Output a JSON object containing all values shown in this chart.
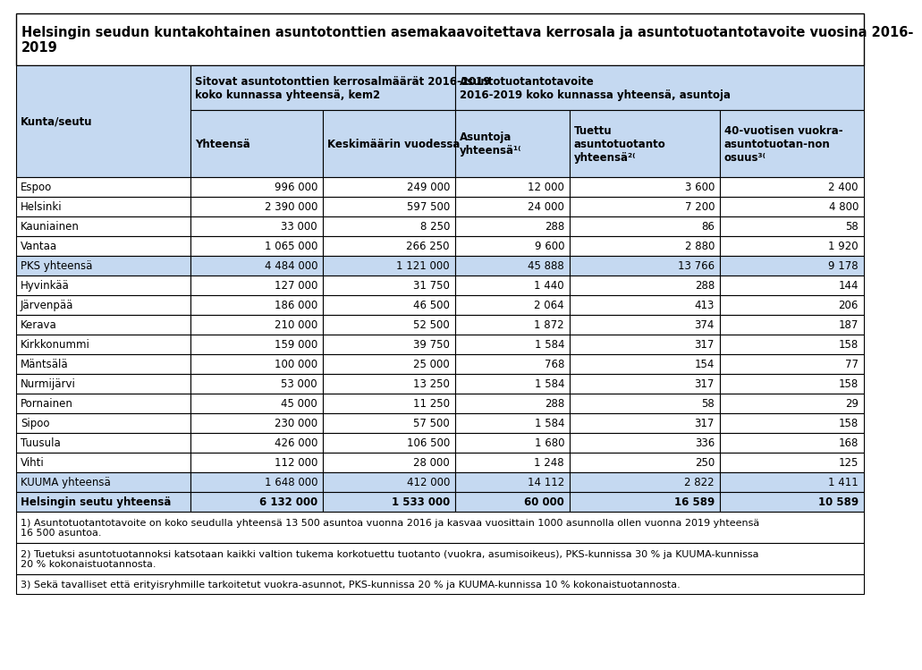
{
  "title": "Helsingin seudun kuntakohtainen asuntotonttien asemakaavoitettava kerrosala ja asuntotuotantotavoite vuosina 2016-\n2019",
  "col_headers_r1_c0": "Kunta/seutu",
  "col_headers_r1_c12": "Sitovat asuntotonttien kerrosalmäärät 2016-2019\nkoko kunnassa yhteensä, kem2",
  "col_headers_r1_c345": "Asuntotuotantotavoite\n2016-2019 koko kunnassa yhteensä, asuntoja",
  "col_headers_r2": [
    "",
    "Yhteensä",
    "Keskimäärin vuodessa",
    "Asuntoja\nyhteensä¹⁽",
    "Tuettu\nasuntotuotanto\nyhteensä²⁽",
    "40-vuotisen vuokra-\nasuntotuotan-non\nosuus³⁽"
  ],
  "rows": [
    [
      "Espoo",
      "996 000",
      "249 000",
      "12 000",
      "3 600",
      "2 400"
    ],
    [
      "Helsinki",
      "2 390 000",
      "597 500",
      "24 000",
      "7 200",
      "4 800"
    ],
    [
      "Kauniainen",
      "33 000",
      "8 250",
      "288",
      "86",
      "58"
    ],
    [
      "Vantaa",
      "1 065 000",
      "266 250",
      "9 600",
      "2 880",
      "1 920"
    ],
    [
      "PKS yhteensä",
      "4 484 000",
      "1 121 000",
      "45 888",
      "13 766",
      "9 178"
    ],
    [
      "Hyvinkää",
      "127 000",
      "31 750",
      "1 440",
      "288",
      "144"
    ],
    [
      "Järvenpää",
      "186 000",
      "46 500",
      "2 064",
      "413",
      "206"
    ],
    [
      "Kerava",
      "210 000",
      "52 500",
      "1 872",
      "374",
      "187"
    ],
    [
      "Kirkkonummi",
      "159 000",
      "39 750",
      "1 584",
      "317",
      "158"
    ],
    [
      "Mäntsälä",
      "100 000",
      "25 000",
      "768",
      "154",
      "77"
    ],
    [
      "Nurmijärvi",
      "53 000",
      "13 250",
      "1 584",
      "317",
      "158"
    ],
    [
      "Pornainen",
      "45 000",
      "11 250",
      "288",
      "58",
      "29"
    ],
    [
      "Sipoo",
      "230 000",
      "57 500",
      "1 584",
      "317",
      "158"
    ],
    [
      "Tuusula",
      "426 000",
      "106 500",
      "1 680",
      "336",
      "168"
    ],
    [
      "Vihti",
      "112 000",
      "28 000",
      "1 248",
      "250",
      "125"
    ],
    [
      "KUUMA yhteensä",
      "1 648 000",
      "412 000",
      "14 112",
      "2 822",
      "1 411"
    ],
    [
      "Helsingin seutu yhteensä",
      "6 132 000",
      "1 533 000",
      "60 000",
      "16 589",
      "10 589"
    ]
  ],
  "highlighted_rows": [
    4,
    15,
    16
  ],
  "bold_rows": [
    16
  ],
  "footnotes": [
    "1) Asuntotuotantotavoite on koko seudulla yhteensä 13 500 asuntoa vuonna 2016 ja kasvaa vuosittain 1000 asunnolla ollen vuonna 2019 yhteensä\n16 500 asuntoa.",
    "2) Tuetuksi asuntotuotannoksi katsotaan kaikki valtion tukema korkotuettu tuotanto (vuokra, asumisoikeus), PKS-kunnissa 30 % ja KUUMA-kunnissa\n20 % kokonaistuotannosta.",
    "3) Sekä tavalliset että erityisryhmille tarkoitetut vuokra-asunnot, PKS-kunnissa 20 % ja KUUMA-kunnissa 10 % kokonaistuotannosta."
  ],
  "bg_header": "#c5d9f1",
  "bg_white": "#ffffff",
  "border_color": "#000000",
  "title_fontsize": 10.5,
  "header_fontsize": 8.5,
  "data_fontsize": 8.5,
  "footnote_fontsize": 8.0
}
